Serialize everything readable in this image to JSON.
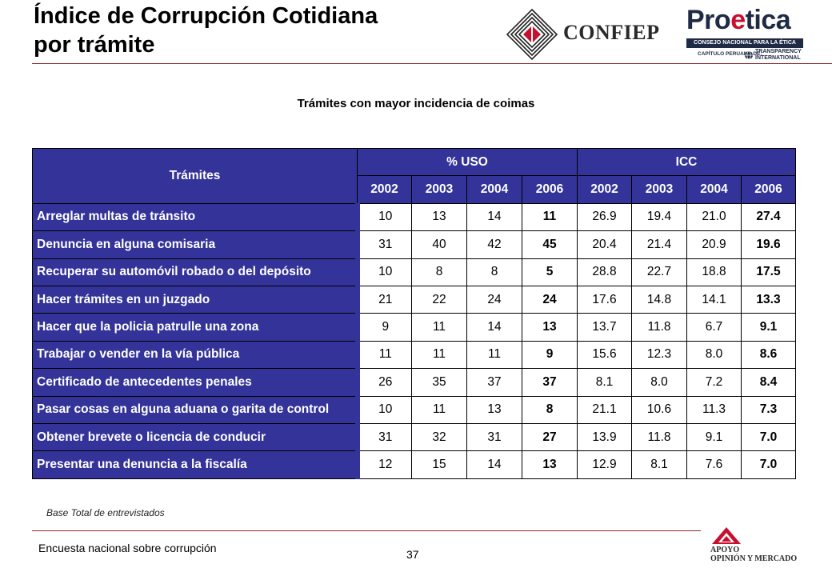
{
  "slide": {
    "title_line1": "Índice de Corrupción Cotidiana",
    "title_line2": "por trámite",
    "subtitle": "Trámites con mayor incidencia de coimas",
    "base_note": "Base Total de entrevistados",
    "footer_text": "Encuesta nacional sobre corrupción",
    "page_number": "37"
  },
  "logos": {
    "confiep": "CONFIEP",
    "proetica_pro": "Pro",
    "proetica_e": "e",
    "proetica_tica": "tica",
    "proetica_bar": "CONSEJO NACIONAL PARA LA ÉTICA PÚBLICA",
    "proetica_sub": "CAPÍTULO PERUANO DE:",
    "proetica_ti1": "TRANSPARENCY",
    "proetica_ti2": "INTERNATIONAL",
    "apoyo_line1": "APOYO",
    "apoyo_line2": "OPINIÓN Y MERCADO"
  },
  "table": {
    "header_tramites": "Trámites",
    "group_uso": "% USO",
    "group_icc": "ICC",
    "years": [
      "2002",
      "2003",
      "2004",
      "2006",
      "2002",
      "2003",
      "2004",
      "2006"
    ],
    "rows": [
      {
        "label": "Arreglar multas de tránsito",
        "values": [
          "10",
          "13",
          "14",
          "11",
          "26.9",
          "19.4",
          "21.0",
          "27.4"
        ]
      },
      {
        "label": "Denuncia en alguna comisaria",
        "values": [
          "31",
          "40",
          "42",
          "45",
          "20.4",
          "21.4",
          "20.9",
          "19.6"
        ]
      },
      {
        "label": "Recuperar su automóvil robado o del depósito",
        "values": [
          "10",
          "8",
          "8",
          "5",
          "28.8",
          "22.7",
          "18.8",
          "17.5"
        ]
      },
      {
        "label": "Hacer trámites en un juzgado",
        "values": [
          "21",
          "22",
          "24",
          "24",
          "17.6",
          "14.8",
          "14.1",
          "13.3"
        ]
      },
      {
        "label": "Hacer que la policia patrulle una zona",
        "values": [
          "9",
          "11",
          "14",
          "13",
          "13.7",
          "11.8",
          "6.7",
          "9.1"
        ]
      },
      {
        "label": "Trabajar o vender en la vía pública",
        "values": [
          "11",
          "11",
          "11",
          "9",
          "15.6",
          "12.3",
          "8.0",
          "8.6"
        ]
      },
      {
        "label": "Certificado de antecedentes penales",
        "values": [
          "26",
          "35",
          "37",
          "37",
          "8.1",
          "8.0",
          "7.2",
          "8.4"
        ]
      },
      {
        "label": "Pasar cosas en alguna aduana o garita de control",
        "values": [
          "10",
          "11",
          "13",
          "8",
          "21.1",
          "10.6",
          "11.3",
          "7.3"
        ]
      },
      {
        "label": "Obtener brevete o licencia de conducir",
        "values": [
          "31",
          "32",
          "31",
          "27",
          "13.9",
          "11.8",
          "9.1",
          "7.0"
        ]
      },
      {
        "label": "Presentar una denuncia a la fiscalía",
        "values": [
          "12",
          "15",
          "14",
          "13",
          "12.9",
          "8.1",
          "7.6",
          "7.0"
        ]
      }
    ]
  },
  "colors": {
    "header_bg": "#333399",
    "rule": "#8b2a2a",
    "proetica_red": "#c8102e"
  }
}
